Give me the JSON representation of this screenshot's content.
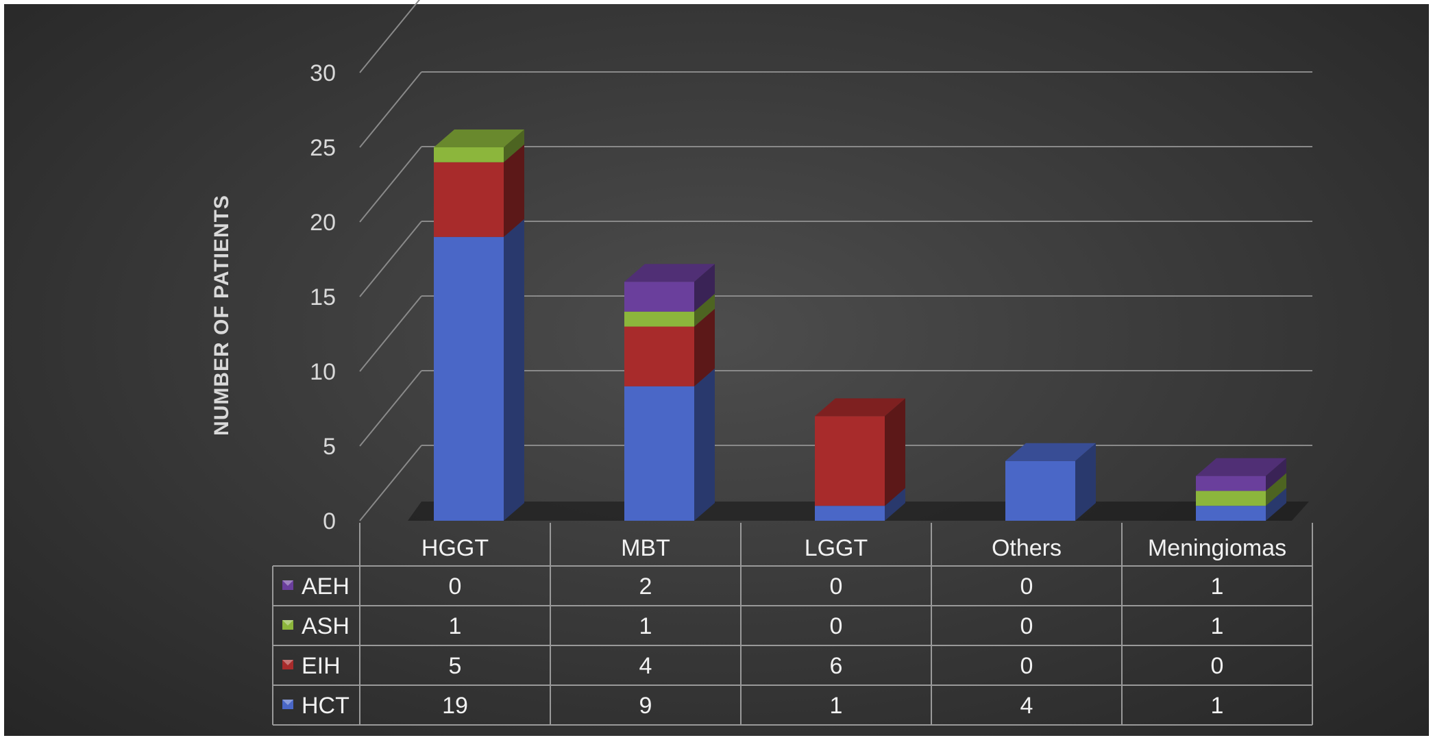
{
  "chart_data": {
    "type": "bar",
    "stacked": true,
    "three_d": true,
    "ylabel": "NUMBER OF PATIENTS",
    "ylim": [
      0,
      30
    ],
    "yticks": [
      0,
      5,
      10,
      15,
      20,
      25,
      30
    ],
    "categories": [
      "HGGT",
      "MBT",
      "LGGT",
      "Others",
      "Meningiomas"
    ],
    "series": [
      {
        "name": "HCT",
        "color": "#4a67c7",
        "values": [
          19,
          9,
          1,
          4,
          1
        ]
      },
      {
        "name": "EIH",
        "color": "#a82b2b",
        "values": [
          5,
          4,
          6,
          0,
          0
        ]
      },
      {
        "name": "ASH",
        "color": "#8cb63c",
        "values": [
          1,
          1,
          0,
          0,
          1
        ]
      },
      {
        "name": "AEH",
        "color": "#6a3f9c",
        "values": [
          0,
          2,
          0,
          0,
          1
        ]
      }
    ],
    "data_table": true,
    "table_row_order": [
      "AEH",
      "ASH",
      "EIH",
      "HCT"
    ],
    "grid": true,
    "legend": "in data table"
  }
}
